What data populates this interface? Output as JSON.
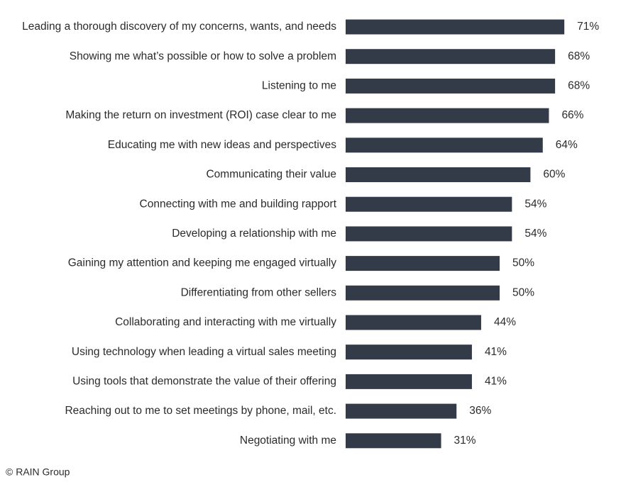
{
  "chart_data": {
    "type": "bar",
    "orientation": "horizontal",
    "color": "#343b48",
    "categories": [
      "Leading a thorough discovery of my concerns, wants, and needs",
      "Showing me what’s possible or how to solve a problem",
      "Listening to me",
      "Making the return on investment (ROI) case clear to me",
      "Educating me with new ideas and perspectives",
      "Communicating their value",
      "Connecting with me and building rapport",
      "Developing a relationship with me",
      "Gaining my attention and keeping me engaged virtually",
      "Differentiating from other sellers",
      "Collaborating and interacting with me virtually",
      "Using technology when leading a virtual sales meeting",
      "Using tools that demonstrate the value of their offering",
      "Reaching out to me to set meetings by phone, mail, etc.",
      "Negotiating with me"
    ],
    "values": [
      71,
      68,
      68,
      66,
      64,
      60,
      54,
      54,
      50,
      50,
      44,
      41,
      41,
      36,
      31
    ],
    "value_labels": [
      "71%",
      "68%",
      "68%",
      "66%",
      "64%",
      "60%",
      "54%",
      "54%",
      "50%",
      "50%",
      "44%",
      "41%",
      "41%",
      "36%",
      "31%"
    ],
    "source": "© RAIN Group"
  }
}
